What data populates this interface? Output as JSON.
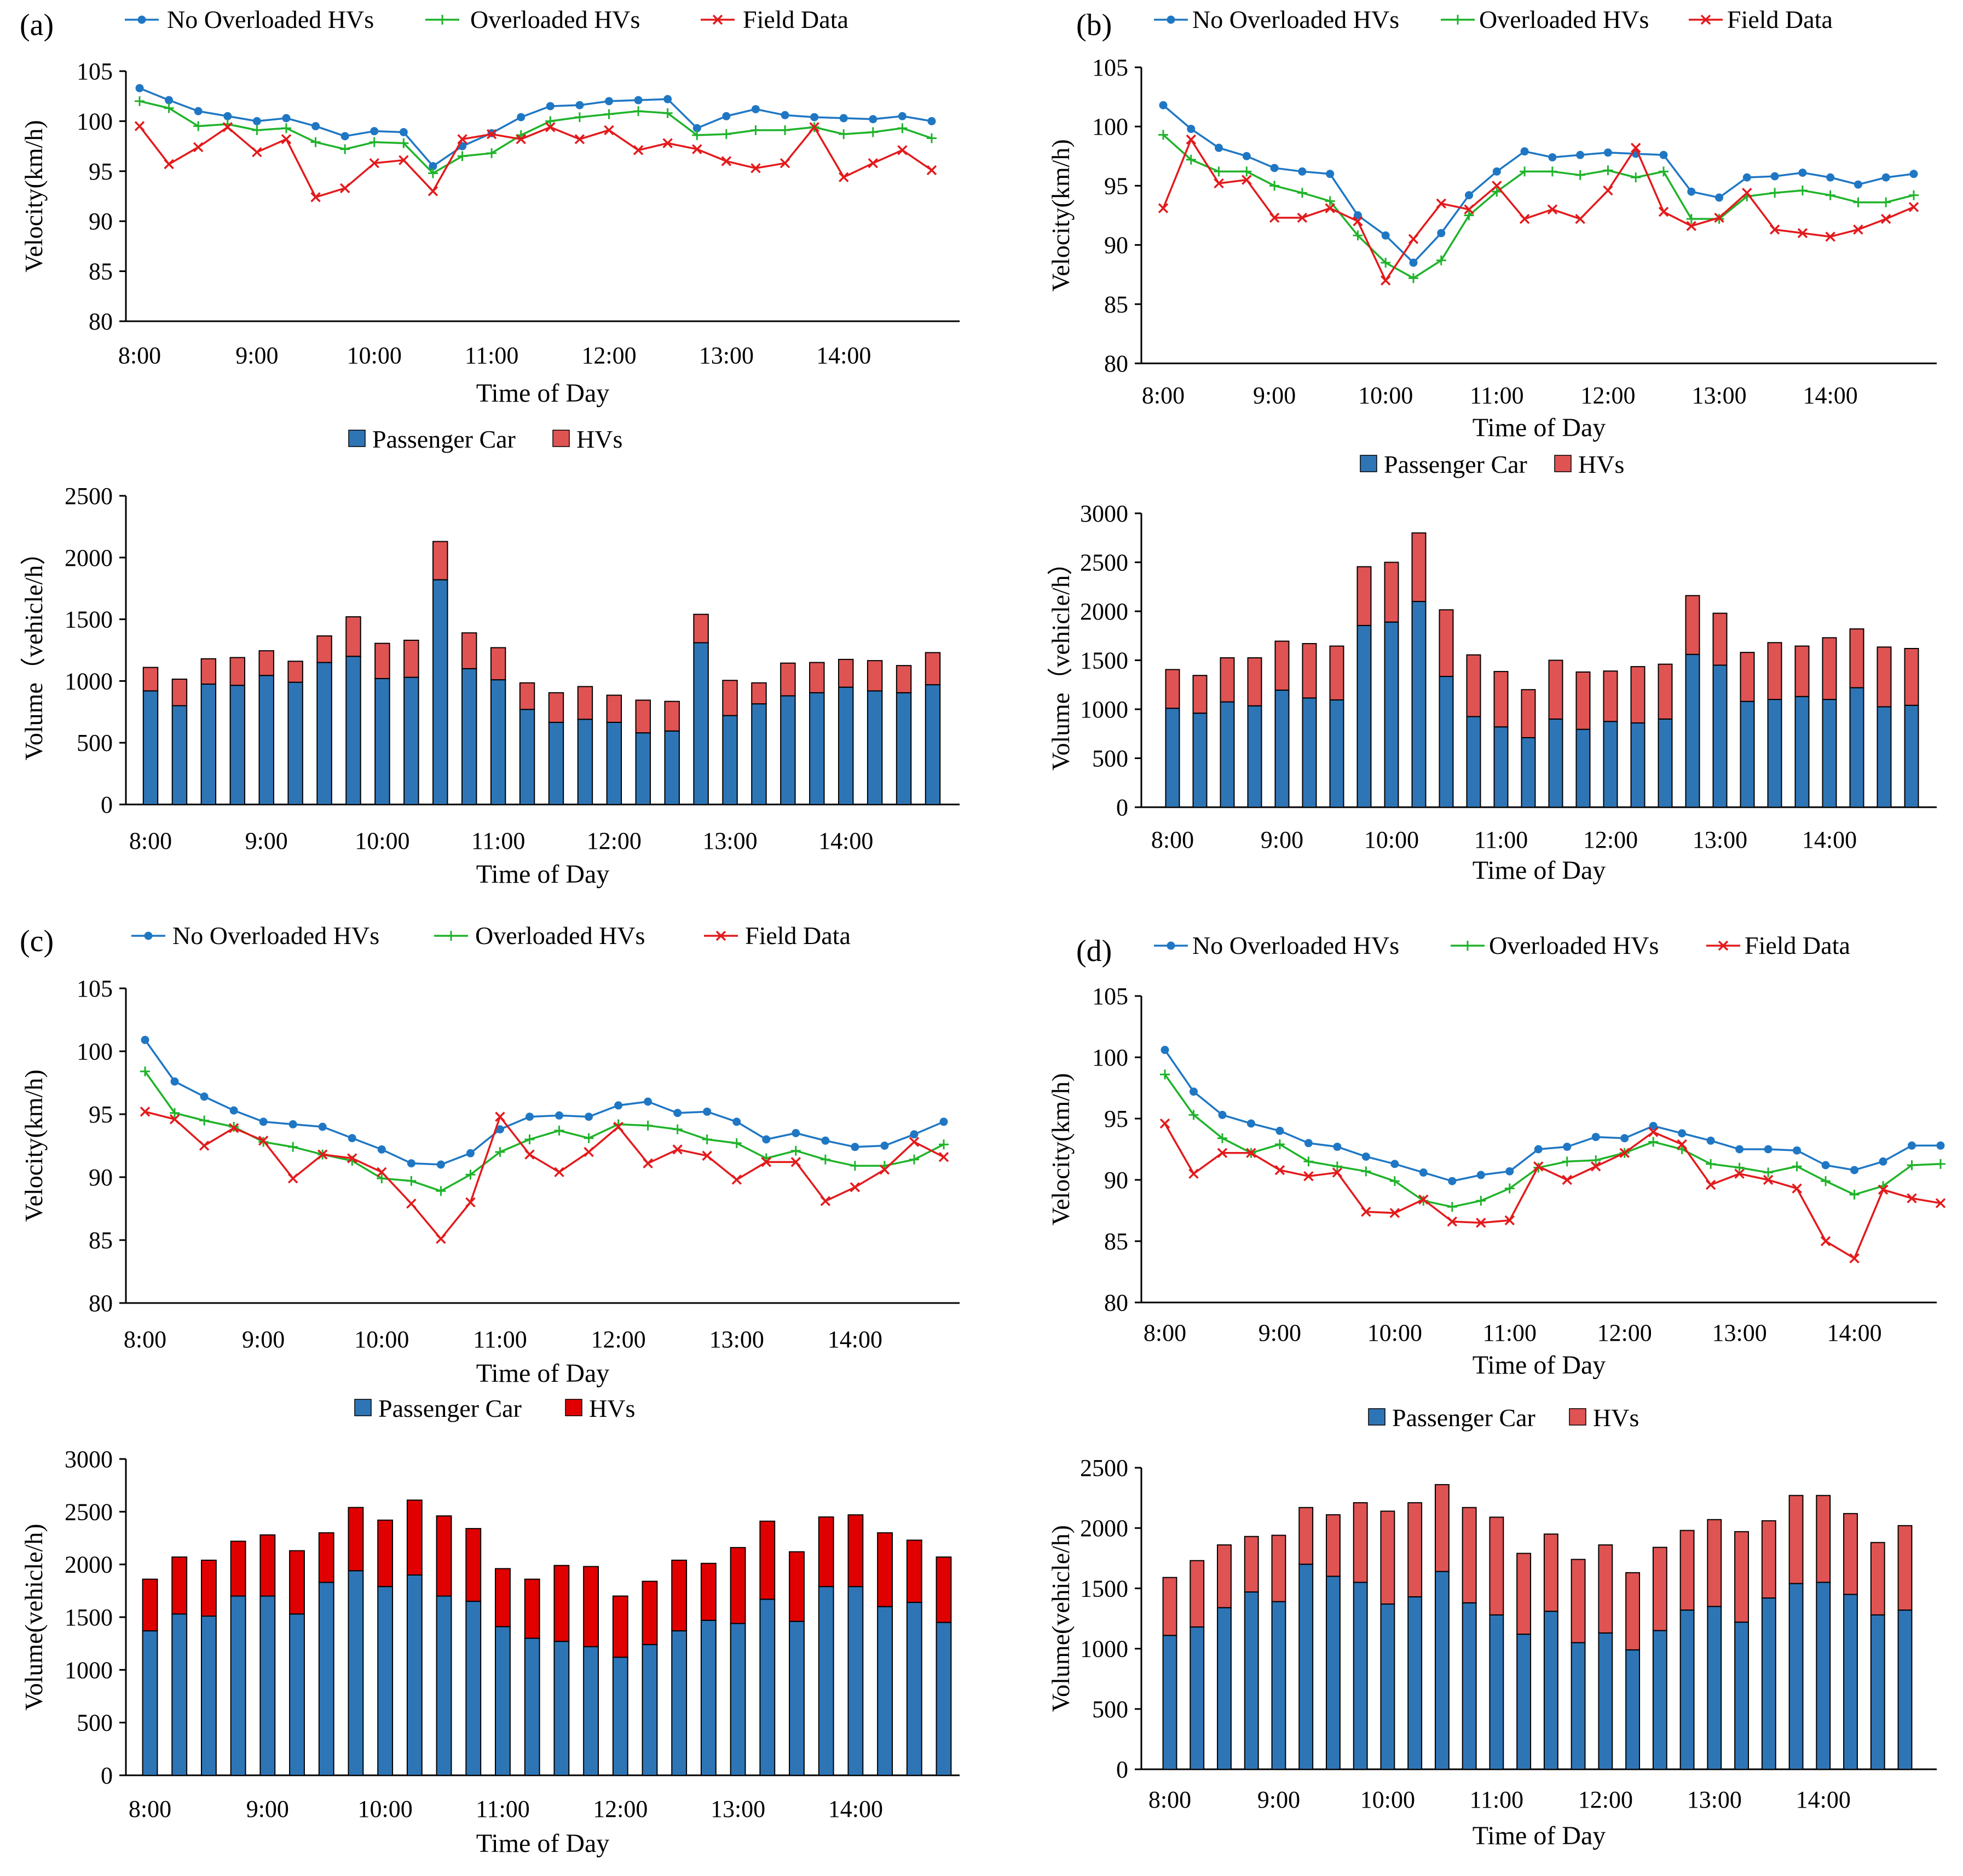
{
  "colors": {
    "no_overloaded": "#1f77c4",
    "overloaded": "#1fb32a",
    "field": "#e31a1c",
    "passenger": "#2e75b6",
    "hvs_light": "#e05353",
    "hvs_strong": "#e00000",
    "axis": "#000000"
  },
  "time_ticks": [
    "8:00",
    "9:00",
    "10:00",
    "11:00",
    "12:00",
    "13:00",
    "14:00"
  ],
  "panels": [
    {
      "label": "(a)",
      "speed_chart": {
        "type": "line",
        "xlabel": "Time of Day",
        "ylabel": "Velocity(km/h)",
        "ylim": [
          80,
          105
        ],
        "yticks": [
          "80",
          "85",
          "90",
          "95",
          "100",
          "105"
        ],
        "legend": [
          "No Overloaded HVs",
          "Overloaded HVs",
          "Field Data"
        ],
        "series": [
          {
            "name": "No Overloaded HVs",
            "values": [
              103.3,
              102.1,
              101.0,
              100.5,
              100.0,
              100.3,
              99.5,
              98.5,
              99.0,
              98.9,
              95.5,
              97.5,
              98.8,
              100.4,
              101.5,
              101.6,
              102.0,
              102.1,
              102.2,
              99.3,
              100.5,
              101.2,
              100.6,
              100.4,
              100.3,
              100.2,
              100.5,
              100.0
            ]
          },
          {
            "name": "Overloaded HVs",
            "values": [
              102.0,
              101.3,
              99.5,
              99.7,
              99.1,
              99.3,
              97.9,
              97.2,
              97.9,
              97.8,
              94.8,
              96.5,
              96.8,
              98.6,
              100.0,
              100.4,
              100.7,
              101.0,
              100.8,
              98.6,
              98.7,
              99.1,
              99.1,
              99.4,
              98.7,
              98.9,
              99.3,
              98.3
            ]
          },
          {
            "name": "Field Data",
            "values": [
              99.5,
              95.7,
              97.4,
              99.4,
              96.9,
              98.2,
              92.4,
              93.3,
              95.8,
              96.1,
              93.0,
              98.2,
              98.7,
              98.2,
              99.4,
              98.2,
              99.1,
              97.1,
              97.8,
              97.2,
              96.0,
              95.3,
              95.8,
              99.4,
              94.4,
              95.8,
              97.1,
              95.1
            ]
          }
        ]
      },
      "volume_chart": {
        "type": "bar",
        "stacked": true,
        "xlabel": "Time of Day",
        "ylabel": "Volume（vehicle/h）",
        "ylim": [
          0,
          2500
        ],
        "yticks": [
          "0",
          "500",
          "1000",
          "1500",
          "2000",
          "2500"
        ],
        "legend": [
          "Passenger Car",
          "HVs"
        ],
        "series": [
          {
            "name": "Passenger Car",
            "values": [
              920,
              800,
              975,
              965,
              1045,
              990,
              1150,
              1200,
              1020,
              1030,
              1820,
              1100,
              1010,
              770,
              665,
              690,
              665,
              580,
              595,
              1310,
              720,
              815,
              880,
              905,
              950,
              920,
              905,
              970
            ]
          },
          {
            "name": "HVs",
            "values": [
              190,
              215,
              205,
              225,
              200,
              170,
              215,
              320,
              285,
              300,
              310,
              290,
              260,
              215,
              240,
              265,
              220,
              265,
              240,
              230,
              285,
              170,
              265,
              245,
              225,
              245,
              220,
              260
            ]
          }
        ]
      }
    },
    {
      "label": "(b)",
      "speed_chart": {
        "type": "line",
        "xlabel": "Time of Day",
        "ylabel": "Velocity(km/h)",
        "ylim": [
          80,
          105
        ],
        "yticks": [
          "80",
          "85",
          "90",
          "95",
          "100",
          "105"
        ],
        "legend": [
          "No Overloaded HVs",
          "Overloaded HVs",
          "Field Data"
        ],
        "series": [
          {
            "name": "No Overloaded HVs",
            "values": [
              101.8,
              99.8,
              98.2,
              97.5,
              96.5,
              96.2,
              96.0,
              92.5,
              90.8,
              88.5,
              91.0,
              94.2,
              96.2,
              97.9,
              97.4,
              97.6,
              97.8,
              97.7,
              97.6,
              94.5,
              94.0,
              95.7,
              95.8,
              96.1,
              95.7,
              95.1,
              95.7,
              96.0
            ]
          },
          {
            "name": "Overloaded HVs",
            "values": [
              99.3,
              97.2,
              96.2,
              96.2,
              95.0,
              94.4,
              93.7,
              90.8,
              88.5,
              87.2,
              88.7,
              92.5,
              94.5,
              96.2,
              96.2,
              95.9,
              96.3,
              95.7,
              96.2,
              92.2,
              92.2,
              94.1,
              94.4,
              94.6,
              94.2,
              93.6,
              93.6,
              94.2
            ]
          },
          {
            "name": "Field Data",
            "values": [
              93.1,
              98.9,
              95.2,
              95.5,
              92.3,
              92.3,
              93.1,
              92.0,
              87.0,
              90.5,
              93.5,
              93.0,
              95.0,
              92.2,
              93.0,
              92.2,
              94.6,
              98.2,
              92.8,
              91.6,
              92.3,
              94.4,
              91.3,
              91.0,
              90.7,
              91.3,
              92.2,
              93.2
            ]
          }
        ]
      },
      "volume_chart": {
        "type": "bar",
        "stacked": true,
        "xlabel": "Time of Day",
        "ylabel": "Volume（vehicle/h）",
        "ylim": [
          0,
          3000
        ],
        "yticks": [
          "0",
          "500",
          "1000",
          "1500",
          "2000",
          "2500",
          "3000"
        ],
        "legend": [
          "Passenger Car",
          "HVs"
        ],
        "series": [
          {
            "name": "Passenger Car",
            "values": [
              1010,
              960,
              1075,
              1035,
              1195,
              1115,
              1095,
              1855,
              1890,
              2100,
              1335,
              925,
              820,
              710,
              900,
              795,
              875,
              860,
              900,
              1560,
              1450,
              1080,
              1100,
              1130,
              1100,
              1220,
              1025,
              1040
            ]
          },
          {
            "name": "HVs",
            "values": [
              395,
              385,
              450,
              490,
              500,
              555,
              550,
              600,
              610,
              700,
              680,
              630,
              565,
              490,
              600,
              585,
              515,
              575,
              560,
              600,
              530,
              500,
              580,
              515,
              630,
              600,
              610,
              580
            ]
          }
        ]
      }
    },
    {
      "label": "(c)",
      "speed_chart": {
        "type": "line",
        "xlabel": "Time of Day",
        "ylabel": "Velocity(km/h)",
        "ylim": [
          80,
          105
        ],
        "yticks": [
          "80",
          "85",
          "90",
          "95",
          "100",
          "105"
        ],
        "legend": [
          "No Overloaded HVs",
          "Overloaded HVs",
          "Field Data"
        ],
        "series": [
          {
            "name": "No Overloaded HVs",
            "values": [
              100.9,
              97.6,
              96.4,
              95.3,
              94.4,
              94.2,
              94.0,
              93.1,
              92.2,
              91.1,
              91.0,
              91.9,
              93.8,
              94.8,
              94.9,
              94.8,
              95.7,
              96.0,
              95.1,
              95.2,
              94.4,
              93.0,
              93.5,
              92.9,
              92.4,
              92.5,
              93.4,
              94.4
            ]
          },
          {
            "name": "Overloaded HVs",
            "values": [
              98.4,
              95.1,
              94.5,
              94.0,
              92.8,
              92.4,
              91.8,
              91.3,
              89.9,
              89.7,
              88.9,
              90.2,
              92.0,
              93.0,
              93.7,
              93.1,
              94.2,
              94.1,
              93.8,
              93.0,
              92.7,
              91.5,
              92.1,
              91.4,
              90.9,
              90.9,
              91.4,
              92.6
            ]
          },
          {
            "name": "Field Data",
            "values": [
              95.2,
              94.6,
              92.5,
              93.9,
              92.9,
              89.9,
              91.8,
              91.5,
              90.4,
              87.9,
              85.1,
              88.0,
              94.8,
              91.8,
              90.4,
              92.0,
              94.0,
              91.1,
              92.2,
              91.7,
              89.8,
              91.2,
              91.2,
              88.1,
              89.2,
              90.6,
              92.8,
              91.6
            ]
          }
        ]
      },
      "volume_chart": {
        "type": "bar",
        "stacked": true,
        "xlabel": "Time of Day",
        "ylabel": "Volume(vehicle/h)",
        "ylim": [
          0,
          3000
        ],
        "yticks": [
          "0",
          "500",
          "1000",
          "1500",
          "2000",
          "2500",
          "3000"
        ],
        "legend": [
          "Passenger Car",
          "HVs"
        ],
        "series": [
          {
            "name": "Passenger Car",
            "values": [
              1370,
              1530,
              1510,
              1700,
              1700,
              1530,
              1830,
              1940,
              1790,
              1900,
              1700,
              1650,
              1410,
              1300,
              1270,
              1220,
              1120,
              1240,
              1370,
              1470,
              1440,
              1670,
              1460,
              1790,
              1790,
              1600,
              1640,
              1450
            ]
          },
          {
            "name": "HVs",
            "values": [
              490,
              540,
              530,
              520,
              580,
              600,
              470,
              600,
              630,
              710,
              760,
              690,
              550,
              560,
              720,
              760,
              580,
              600,
              670,
              540,
              720,
              740,
              660,
              660,
              680,
              700,
              590,
              620
            ]
          }
        ]
      }
    },
    {
      "label": "(d)",
      "speed_chart": {
        "type": "line",
        "xlabel": "Time of Day",
        "ylabel": "Velocity(km/h)",
        "ylim": [
          80,
          105
        ],
        "yticks": [
          "80",
          "85",
          "90",
          "95",
          "100",
          "105"
        ],
        "legend": [
          "No Overloaded HVs",
          "Overloaded HVs",
          "Field Data"
        ],
        "series": [
          {
            "name": "No Overloaded HVs",
            "values": [
              100.6,
              97.2,
              95.3,
              94.6,
              94.0,
              93.0,
              92.7,
              91.9,
              91.3,
              90.6,
              89.9,
              90.4,
              90.7,
              92.5,
              92.7,
              93.5,
              93.4,
              94.4,
              93.8,
              93.2,
              92.5,
              92.5,
              92.4,
              91.2,
              90.8,
              91.5,
              92.8,
              92.8
            ]
          },
          {
            "name": "Overloaded HVs",
            "values": [
              98.6,
              95.3,
              93.4,
              92.2,
              92.9,
              91.5,
              91.1,
              90.7,
              89.9,
              88.3,
              87.8,
              88.3,
              89.3,
              91.0,
              91.5,
              91.6,
              92.2,
              93.1,
              92.5,
              91.3,
              91.0,
              90.6,
              91.1,
              89.9,
              88.8,
              89.5,
              91.2,
              91.3
            ]
          },
          {
            "name": "Field Data",
            "values": [
              94.6,
              90.5,
              92.2,
              92.2,
              90.8,
              90.3,
              90.6,
              87.4,
              87.3,
              88.4,
              86.6,
              86.5,
              86.7,
              91.1,
              90.0,
              91.1,
              92.2,
              93.9,
              92.9,
              89.6,
              90.5,
              90.0,
              89.3,
              85.0,
              83.6,
              89.2,
              88.5,
              88.1
            ]
          }
        ]
      },
      "volume_chart": {
        "type": "bar",
        "stacked": true,
        "xlabel": "Time of Day",
        "ylabel": "Volume(vehicle/h)",
        "ylim": [
          0,
          2500
        ],
        "yticks": [
          "0",
          "500",
          "1000",
          "1500",
          "2000",
          "2500"
        ],
        "legend": [
          "Passenger Car",
          "HVs"
        ],
        "series": [
          {
            "name": "Passenger Car",
            "values": [
              1110,
              1180,
              1340,
              1470,
              1390,
              1700,
              1600,
              1550,
              1370,
              1430,
              1640,
              1380,
              1280,
              1120,
              1310,
              1050,
              1130,
              990,
              1150,
              1320,
              1350,
              1220,
              1420,
              1540,
              1550,
              1450,
              1280,
              1320
            ]
          },
          {
            "name": "HVs",
            "values": [
              480,
              550,
              520,
              460,
              550,
              470,
              510,
              660,
              770,
              780,
              720,
              790,
              810,
              670,
              640,
              690,
              730,
              640,
              690,
              660,
              720,
              750,
              640,
              730,
              720,
              670,
              600,
              700
            ]
          }
        ]
      }
    }
  ]
}
